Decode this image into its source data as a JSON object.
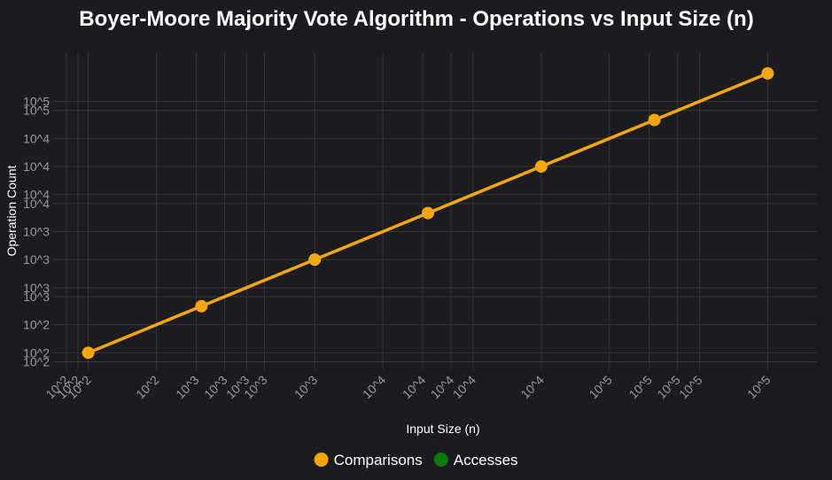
{
  "chart_data": {
    "type": "line",
    "title": "Boyer-Moore Majority Vote Algorithm - Operations vs Input Size (n)",
    "xlabel": "Input Size (n)",
    "ylabel": "Operation Count",
    "xscale": "log",
    "yscale": "log",
    "xlim": [
      70,
      165000
    ],
    "ylim": [
      65,
      165000
    ],
    "x_ticks": [
      {
        "value": 80,
        "label": "10^2"
      },
      {
        "value": 90,
        "label": "10^2"
      },
      {
        "value": 100,
        "label": "10^2"
      },
      {
        "value": 200,
        "label": "10^2"
      },
      {
        "value": 300,
        "label": "10^3"
      },
      {
        "value": 400,
        "label": "10^3"
      },
      {
        "value": 500,
        "label": "10^3"
      },
      {
        "value": 600,
        "label": "10^3"
      },
      {
        "value": 1000,
        "label": "10^3"
      },
      {
        "value": 2000,
        "label": "10^4"
      },
      {
        "value": 3000,
        "label": "10^4"
      },
      {
        "value": 4000,
        "label": "10^4"
      },
      {
        "value": 5000,
        "label": "10^4"
      },
      {
        "value": 10000,
        "label": "10^4"
      },
      {
        "value": 20000,
        "label": "10^5"
      },
      {
        "value": 30000,
        "label": "10^5"
      },
      {
        "value": 40000,
        "label": "10^5"
      },
      {
        "value": 50000,
        "label": "10^5"
      },
      {
        "value": 100000,
        "label": "10^5"
      }
    ],
    "y_ticks": [
      {
        "value": 80,
        "label": "10^2"
      },
      {
        "value": 100,
        "label": "10^2"
      },
      {
        "value": 200,
        "label": "10^2"
      },
      {
        "value": 400,
        "label": "10^3"
      },
      {
        "value": 500,
        "label": "10^3"
      },
      {
        "value": 1000,
        "label": "10^3"
      },
      {
        "value": 2000,
        "label": "10^3"
      },
      {
        "value": 4000,
        "label": "10^4"
      },
      {
        "value": 5000,
        "label": "10^4"
      },
      {
        "value": 10000,
        "label": "10^4"
      },
      {
        "value": 20000,
        "label": "10^4"
      },
      {
        "value": 40000,
        "label": "10^5"
      },
      {
        "value": 50000,
        "label": "10^5"
      }
    ],
    "series": [
      {
        "name": "Comparisons",
        "color": "#f5a60c",
        "x": [
          100,
          316,
          1000,
          3162,
          10000,
          31623,
          100000
        ],
        "values": [
          100,
          316,
          1000,
          3162,
          10000,
          31623,
          100000
        ]
      },
      {
        "name": "Accesses",
        "color": "#0b7a0b",
        "x": [],
        "values": []
      }
    ],
    "grid": true,
    "legend": "bottom-center"
  }
}
